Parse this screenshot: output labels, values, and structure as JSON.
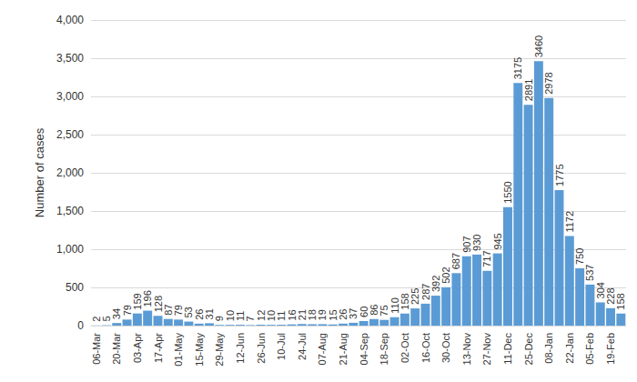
{
  "chart_data": {
    "type": "bar",
    "y_label": "Number of cases",
    "categories": [
      "06-Mar",
      null,
      "20-Mar",
      null,
      "03-Apr",
      null,
      "17-Apr",
      null,
      "01-May",
      null,
      "15-May",
      null,
      "29-May",
      null,
      "12-Jun",
      null,
      "26-Jun",
      null,
      "10-Jul",
      null,
      "24-Jul",
      null,
      "07-Aug",
      null,
      "21-Aug",
      null,
      "04-Sep",
      null,
      "18-Sep",
      null,
      "02-Oct",
      null,
      "16-Oct",
      null,
      "30-Oct",
      null,
      "13-Nov",
      null,
      "27-Nov",
      null,
      "11-Dec",
      null,
      "25-Dec",
      null,
      "08-Jan",
      null,
      "22-Jan",
      null,
      "05-Feb",
      null,
      "19-Feb",
      null
    ],
    "values": [
      2,
      5,
      34,
      79,
      159,
      196,
      128,
      87,
      79,
      53,
      26,
      31,
      9,
      10,
      11,
      7,
      12,
      10,
      11,
      16,
      21,
      18,
      19,
      15,
      26,
      37,
      60,
      86,
      75,
      110,
      158,
      225,
      287,
      392,
      502,
      687,
      907,
      930,
      717,
      945,
      1550,
      3175,
      2891,
      3460,
      2978,
      1775,
      1172,
      750,
      537,
      304,
      228,
      158
    ],
    "color": "#5b9bd5",
    "ylim": [
      0,
      4000
    ],
    "yticks": [
      0,
      500,
      1000,
      1500,
      2000,
      2500,
      3000,
      3500,
      4000
    ],
    "grid": true,
    "data_labels": true
  }
}
